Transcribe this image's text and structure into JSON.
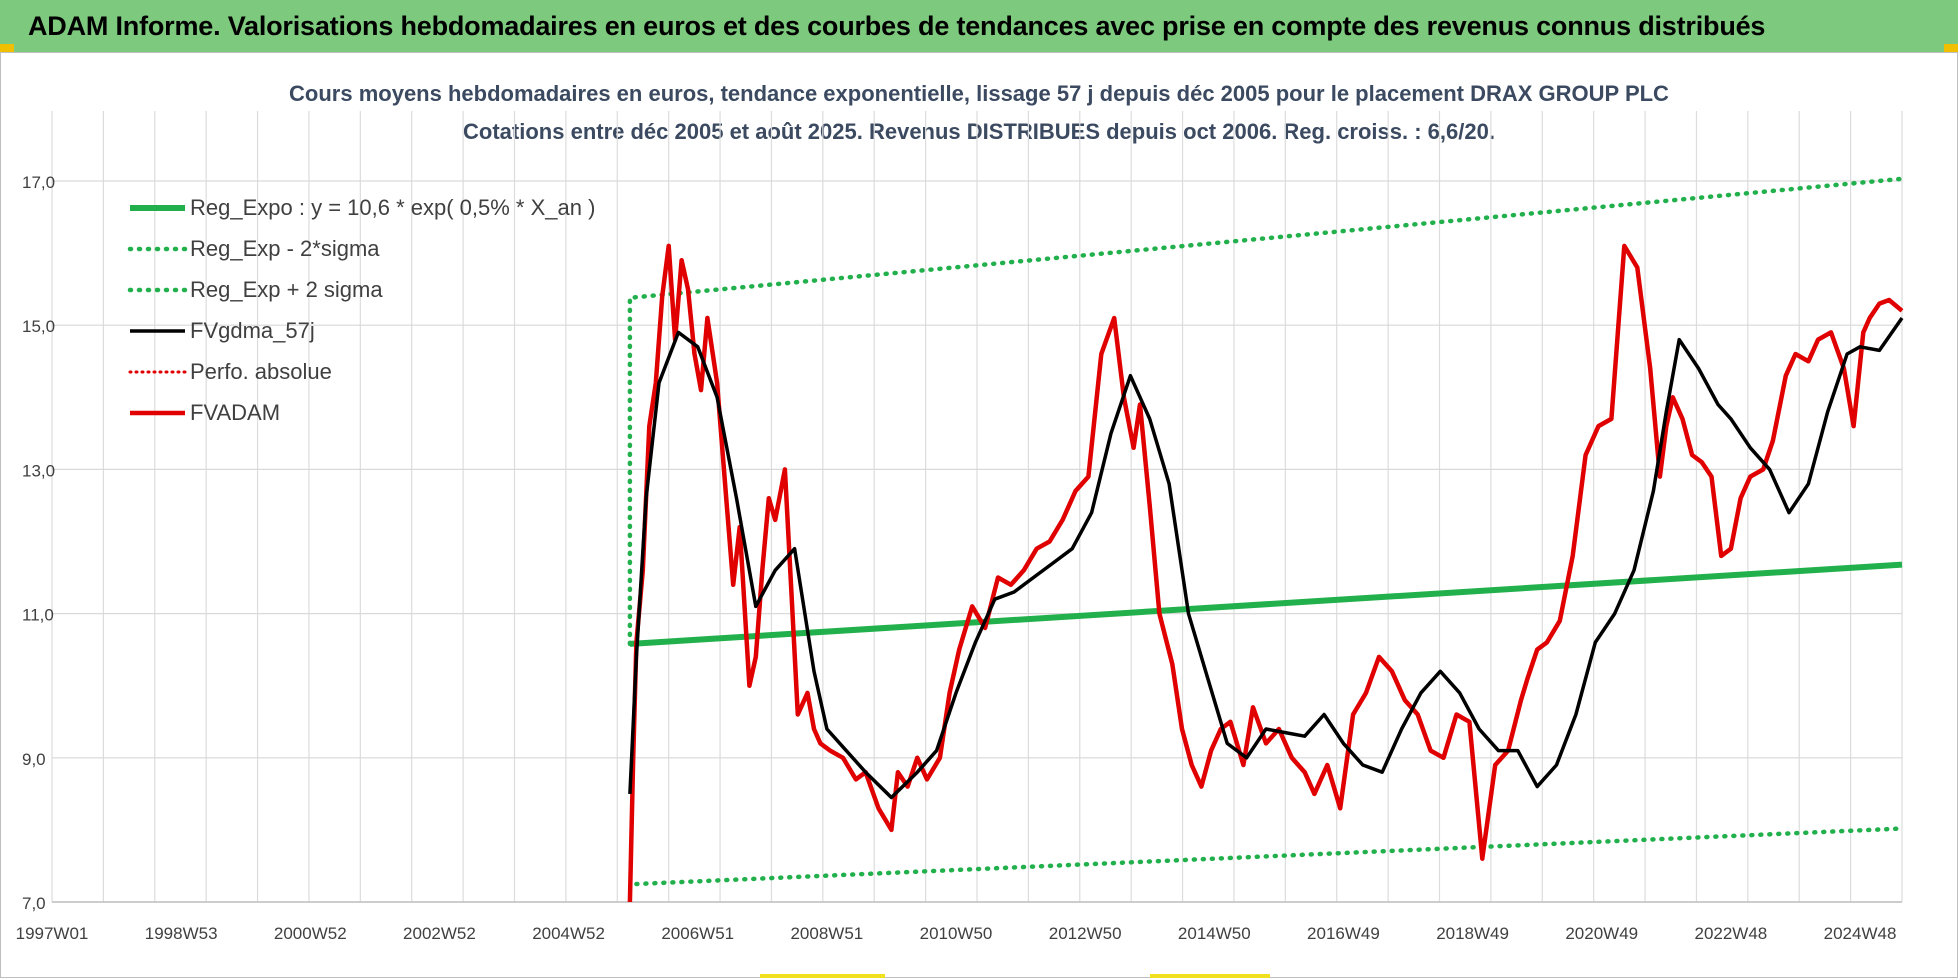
{
  "header": {
    "title": "ADAM Informe. Valorisations hebdomadaires en euros et des courbes de tendances avec prise en compte des revenus connus distribués"
  },
  "colors": {
    "header_bg": "#7dc97d",
    "reg_expo": "#21b04b",
    "sigma": "#21b04b",
    "fvgdma": "#000000",
    "perfo": "#e00000",
    "fvadam": "#e00000",
    "title_text": "#3b4a60"
  },
  "chart_data": {
    "type": "line",
    "title": "Cours moyens hebdomadaires en euros, tendance exponentielle, lissage 57 j depuis déc 2005 pour le placement DRAX GROUP PLC",
    "subtitle": "Cotations entre déc 2005 et août 2025. Revenus DISTRIBUES depuis oct 2006. Reg. croiss. : 6,6/20.",
    "xlabel": "",
    "ylabel": "",
    "xlim": [
      1997.0,
      2025.65
    ],
    "ylim": [
      7.0,
      17.0
    ],
    "y_ticks": [
      "7,0",
      "9,0",
      "11,0",
      "13,0",
      "15,0",
      "17,0"
    ],
    "x_ticks": [
      {
        "label": "1997W01",
        "x": 1997.0
      },
      {
        "label": "1998W53",
        "x": 1999.0
      },
      {
        "label": "2000W52",
        "x": 2001.0
      },
      {
        "label": "2002W52",
        "x": 2003.0
      },
      {
        "label": "2004W52",
        "x": 2005.0
      },
      {
        "label": "2006W51",
        "x": 2007.0
      },
      {
        "label": "2008W51",
        "x": 2009.0
      },
      {
        "label": "2010W50",
        "x": 2011.0
      },
      {
        "label": "2012W50",
        "x": 2013.0
      },
      {
        "label": "2014W50",
        "x": 2015.0
      },
      {
        "label": "2016W49",
        "x": 2017.0
      },
      {
        "label": "2018W49",
        "x": 2019.0
      },
      {
        "label": "2020W49",
        "x": 2021.0
      },
      {
        "label": "2022W48",
        "x": 2023.0
      },
      {
        "label": "2024W48",
        "x": 2025.0
      }
    ],
    "grid": true,
    "legend_position": "top-left",
    "legend": [
      "Reg_Expo : y = 10,6 * exp( 0,5% *  X_an )",
      "Reg_Exp - 2*sigma",
      "Reg_Exp + 2 sigma",
      "FVgdma_57j",
      "Perfo. absolue",
      "FVADAM"
    ],
    "series": [
      {
        "name": "Reg_Expo : y = 10,6 * exp( 0,5% *  X_an )",
        "style": "solid-thick",
        "x": [
          2005.95,
          2025.65
        ],
        "values": [
          10.58,
          11.68
        ]
      },
      {
        "name": "Reg_Exp - 2*sigma",
        "style": "dotted",
        "x": [
          2006.05,
          2025.65
        ],
        "values": [
          7.25,
          8.02
        ]
      },
      {
        "name": "Reg_Exp + 2 sigma",
        "style": "dotted",
        "x": [
          2005.95,
          2005.95,
          2025.65
        ],
        "values": [
          10.58,
          15.38,
          17.03
        ]
      },
      {
        "name": "FVgdma_57j",
        "style": "solid",
        "x": [
          2005.95,
          2006.05,
          2006.2,
          2006.4,
          2006.7,
          2007.0,
          2007.3,
          2007.6,
          2007.9,
          2008.2,
          2008.5,
          2008.8,
          2009.0,
          2009.3,
          2009.6,
          2010.0,
          2010.4,
          2010.7,
          2011.0,
          2011.3,
          2011.6,
          2011.9,
          2012.2,
          2012.5,
          2012.8,
          2013.1,
          2013.4,
          2013.7,
          2014.0,
          2014.3,
          2014.6,
          2014.9,
          2015.2,
          2015.5,
          2015.8,
          2016.1,
          2016.4,
          2016.7,
          2017.0,
          2017.3,
          2017.6,
          2017.9,
          2018.2,
          2018.5,
          2018.8,
          2019.1,
          2019.4,
          2019.7,
          2020.0,
          2020.3,
          2020.6,
          2020.9,
          2021.2,
          2021.5,
          2021.8,
          2022.0,
          2022.2,
          2022.5,
          2022.8,
          2023.0,
          2023.3,
          2023.6,
          2023.9,
          2024.2,
          2024.5,
          2024.8,
          2025.0,
          2025.3,
          2025.65
        ],
        "values": [
          8.5,
          10.4,
          12.6,
          14.2,
          14.9,
          14.7,
          14.0,
          12.6,
          11.1,
          11.6,
          11.9,
          10.2,
          9.4,
          9.1,
          8.8,
          8.45,
          8.8,
          9.1,
          9.9,
          10.6,
          11.2,
          11.3,
          11.5,
          11.7,
          11.9,
          12.4,
          13.5,
          14.3,
          13.7,
          12.8,
          11.0,
          10.1,
          9.2,
          9.0,
          9.4,
          9.35,
          9.3,
          9.6,
          9.2,
          8.9,
          8.8,
          9.4,
          9.9,
          10.2,
          9.9,
          9.4,
          9.1,
          9.1,
          8.6,
          8.9,
          9.6,
          10.6,
          11.0,
          11.6,
          12.7,
          13.8,
          14.8,
          14.4,
          13.9,
          13.7,
          13.3,
          13.0,
          12.4,
          12.8,
          13.8,
          14.6,
          14.7,
          14.65,
          15.1
        ]
      },
      {
        "name": "Perfo. absolue",
        "style": "dotted",
        "x": [],
        "values": []
      },
      {
        "name": "FVADAM",
        "style": "solid-thick",
        "x": [
          2005.95,
          2006.0,
          2006.05,
          2006.15,
          2006.25,
          2006.35,
          2006.45,
          2006.55,
          2006.65,
          2006.75,
          2006.85,
          2006.95,
          2007.05,
          2007.15,
          2007.3,
          2007.45,
          2007.55,
          2007.65,
          2007.8,
          2007.9,
          2008.0,
          2008.1,
          2008.2,
          2008.35,
          2008.45,
          2008.55,
          2008.7,
          2008.8,
          2008.9,
          2009.05,
          2009.25,
          2009.45,
          2009.6,
          2009.8,
          2010.0,
          2010.1,
          2010.25,
          2010.4,
          2010.55,
          2010.75,
          2010.9,
          2011.05,
          2011.25,
          2011.45,
          2011.65,
          2011.85,
          2012.05,
          2012.25,
          2012.45,
          2012.65,
          2012.85,
          2013.05,
          2013.25,
          2013.45,
          2013.6,
          2013.75,
          2013.85,
          2014.0,
          2014.15,
          2014.35,
          2014.5,
          2014.65,
          2014.8,
          2014.95,
          2015.1,
          2015.25,
          2015.45,
          2015.6,
          2015.8,
          2016.0,
          2016.2,
          2016.4,
          2016.55,
          2016.75,
          2016.95,
          2017.15,
          2017.35,
          2017.55,
          2017.75,
          2017.95,
          2018.15,
          2018.35,
          2018.55,
          2018.75,
          2018.95,
          2019.15,
          2019.35,
          2019.55,
          2019.75,
          2019.85,
          2020.0,
          2020.15,
          2020.35,
          2020.55,
          2020.75,
          2020.95,
          2021.15,
          2021.35,
          2021.55,
          2021.75,
          2021.9,
          2022.0,
          2022.1,
          2022.25,
          2022.4,
          2022.55,
          2022.7,
          2022.85,
          2023.0,
          2023.15,
          2023.3,
          2023.5,
          2023.65,
          2023.85,
          2024.0,
          2024.2,
          2024.35,
          2024.55,
          2024.75,
          2024.9,
          2025.05,
          2025.15,
          2025.3,
          2025.45,
          2025.65
        ],
        "values": [
          7.0,
          9.0,
          10.6,
          11.6,
          13.6,
          14.2,
          15.4,
          16.1,
          14.8,
          15.9,
          15.5,
          14.6,
          14.1,
          15.1,
          14.2,
          12.5,
          11.4,
          12.2,
          10.0,
          10.4,
          11.6,
          12.6,
          12.3,
          13.0,
          11.3,
          9.6,
          9.9,
          9.4,
          9.2,
          9.1,
          9.0,
          8.7,
          8.8,
          8.3,
          8.0,
          8.8,
          8.6,
          9.0,
          8.7,
          9.0,
          9.9,
          10.5,
          11.1,
          10.8,
          11.5,
          11.4,
          11.6,
          11.9,
          12.0,
          12.3,
          12.7,
          12.9,
          14.6,
          15.1,
          14.0,
          13.3,
          13.9,
          12.5,
          11.0,
          10.3,
          9.4,
          8.9,
          8.6,
          9.1,
          9.4,
          9.5,
          8.9,
          9.7,
          9.2,
          9.4,
          9.0,
          8.8,
          8.5,
          8.9,
          8.3,
          9.6,
          9.9,
          10.4,
          10.2,
          9.8,
          9.6,
          9.1,
          9.0,
          9.6,
          9.5,
          7.6,
          8.9,
          9.1,
          9.8,
          10.1,
          10.5,
          10.6,
          10.9,
          11.8,
          13.2,
          13.6,
          13.7,
          16.1,
          15.8,
          14.4,
          12.9,
          13.6,
          14.0,
          13.7,
          13.2,
          13.1,
          12.9,
          11.8,
          11.9,
          12.6,
          12.9,
          13.0,
          13.4,
          14.3,
          14.6,
          14.5,
          14.8,
          14.9,
          14.4,
          13.6,
          14.9,
          15.1,
          15.3,
          15.35,
          15.2
        ]
      }
    ]
  }
}
